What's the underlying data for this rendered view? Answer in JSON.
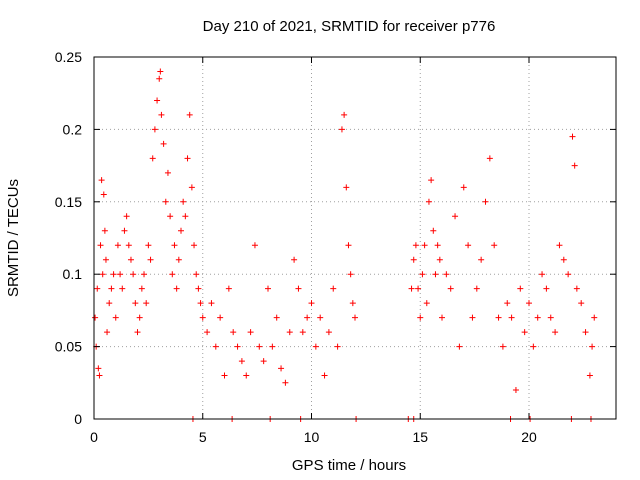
{
  "chart_data": {
    "type": "scatter",
    "title": "Day 210 of 2021, SRMTID for receiver p776",
    "xlabel": "GPS time / hours",
    "ylabel": "SRMTID / TECUs",
    "xlim": [
      0,
      24
    ],
    "ylim": [
      0,
      0.25
    ],
    "xticks": [
      0,
      5,
      10,
      15,
      20
    ],
    "xtick_labels": [
      "0",
      "5",
      "10",
      "15",
      "20"
    ],
    "yticks": [
      0,
      0.05,
      0.1,
      0.15,
      0.2,
      0.25
    ],
    "ytick_labels": [
      "0",
      "0.05",
      "0.1",
      "0.15",
      "0.2",
      "0.25"
    ],
    "grid": true,
    "series": [
      {
        "name": "SRMTID",
        "color": "#ff0000",
        "marker": "plus",
        "points": [
          [
            0.05,
            0.07
          ],
          [
            0.1,
            0.05
          ],
          [
            0.15,
            0.09
          ],
          [
            0.2,
            0.035
          ],
          [
            0.25,
            0.03
          ],
          [
            0.3,
            0.12
          ],
          [
            0.35,
            0.165
          ],
          [
            0.4,
            0.1
          ],
          [
            0.45,
            0.155
          ],
          [
            0.5,
            0.13
          ],
          [
            0.55,
            0.11
          ],
          [
            0.6,
            0.06
          ],
          [
            0.7,
            0.08
          ],
          [
            0.8,
            0.09
          ],
          [
            0.9,
            0.1
          ],
          [
            1.0,
            0.07
          ],
          [
            1.1,
            0.12
          ],
          [
            1.2,
            0.1
          ],
          [
            1.3,
            0.09
          ],
          [
            1.4,
            0.13
          ],
          [
            1.5,
            0.14
          ],
          [
            1.6,
            0.12
          ],
          [
            1.7,
            0.11
          ],
          [
            1.8,
            0.1
          ],
          [
            1.9,
            0.08
          ],
          [
            2.0,
            0.06
          ],
          [
            2.1,
            0.07
          ],
          [
            2.2,
            0.09
          ],
          [
            2.3,
            0.1
          ],
          [
            2.4,
            0.08
          ],
          [
            2.5,
            0.12
          ],
          [
            2.6,
            0.11
          ],
          [
            2.7,
            0.18
          ],
          [
            2.8,
            0.2
          ],
          [
            2.9,
            0.22
          ],
          [
            3.0,
            0.235
          ],
          [
            3.05,
            0.24
          ],
          [
            3.1,
            0.21
          ],
          [
            3.2,
            0.19
          ],
          [
            3.3,
            0.15
          ],
          [
            3.4,
            0.17
          ],
          [
            3.5,
            0.14
          ],
          [
            3.6,
            0.1
          ],
          [
            3.7,
            0.12
          ],
          [
            3.8,
            0.09
          ],
          [
            3.9,
            0.11
          ],
          [
            4.0,
            0.13
          ],
          [
            4.1,
            0.15
          ],
          [
            4.2,
            0.14
          ],
          [
            4.3,
            0.18
          ],
          [
            4.4,
            0.21
          ],
          [
            4.5,
            0.16
          ],
          [
            4.6,
            0.12
          ],
          [
            4.7,
            0.1
          ],
          [
            4.8,
            0.09
          ],
          [
            4.9,
            0.08
          ],
          [
            5.0,
            0.07
          ],
          [
            5.2,
            0.06
          ],
          [
            5.4,
            0.08
          ],
          [
            5.6,
            0.05
          ],
          [
            5.8,
            0.07
          ],
          [
            6.0,
            0.03
          ],
          [
            6.2,
            0.09
          ],
          [
            6.4,
            0.06
          ],
          [
            6.6,
            0.05
          ],
          [
            6.8,
            0.04
          ],
          [
            7.0,
            0.03
          ],
          [
            7.2,
            0.06
          ],
          [
            7.4,
            0.12
          ],
          [
            7.6,
            0.05
          ],
          [
            7.8,
            0.04
          ],
          [
            8.0,
            0.09
          ],
          [
            8.2,
            0.05
          ],
          [
            8.4,
            0.07
          ],
          [
            8.6,
            0.035
          ],
          [
            8.8,
            0.025
          ],
          [
            9.0,
            0.06
          ],
          [
            9.2,
            0.11
          ],
          [
            9.4,
            0.09
          ],
          [
            9.6,
            0.06
          ],
          [
            9.8,
            0.07
          ],
          [
            10.0,
            0.08
          ],
          [
            10.2,
            0.05
          ],
          [
            10.4,
            0.07
          ],
          [
            10.6,
            0.03
          ],
          [
            10.8,
            0.06
          ],
          [
            11.0,
            0.09
          ],
          [
            11.2,
            0.05
          ],
          [
            11.4,
            0.2
          ],
          [
            11.5,
            0.21
          ],
          [
            11.6,
            0.16
          ],
          [
            11.7,
            0.12
          ],
          [
            11.8,
            0.1
          ],
          [
            11.9,
            0.08
          ],
          [
            12.0,
            0.07
          ],
          [
            14.6,
            0.09
          ],
          [
            14.7,
            0.11
          ],
          [
            14.8,
            0.12
          ],
          [
            14.9,
            0.09
          ],
          [
            15.0,
            0.07
          ],
          [
            15.1,
            0.1
          ],
          [
            15.2,
            0.12
          ],
          [
            15.3,
            0.08
          ],
          [
            15.4,
            0.15
          ],
          [
            15.5,
            0.165
          ],
          [
            15.6,
            0.13
          ],
          [
            15.7,
            0.1
          ],
          [
            15.8,
            0.12
          ],
          [
            15.9,
            0.11
          ],
          [
            16.0,
            0.07
          ],
          [
            16.2,
            0.1
          ],
          [
            16.4,
            0.09
          ],
          [
            16.6,
            0.14
          ],
          [
            16.8,
            0.05
          ],
          [
            17.0,
            0.16
          ],
          [
            17.2,
            0.12
          ],
          [
            17.4,
            0.07
          ],
          [
            17.6,
            0.09
          ],
          [
            17.8,
            0.11
          ],
          [
            18.0,
            0.15
          ],
          [
            18.2,
            0.18
          ],
          [
            18.4,
            0.12
          ],
          [
            18.6,
            0.07
          ],
          [
            18.8,
            0.05
          ],
          [
            19.0,
            0.08
          ],
          [
            19.2,
            0.07
          ],
          [
            19.4,
            0.02
          ],
          [
            19.6,
            0.09
          ],
          [
            19.8,
            0.06
          ],
          [
            20.0,
            0.08
          ],
          [
            20.2,
            0.05
          ],
          [
            20.4,
            0.07
          ],
          [
            20.6,
            0.1
          ],
          [
            20.8,
            0.09
          ],
          [
            21.0,
            0.07
          ],
          [
            21.2,
            0.06
          ],
          [
            21.4,
            0.12
          ],
          [
            21.6,
            0.11
          ],
          [
            21.8,
            0.1
          ],
          [
            22.0,
            0.195
          ],
          [
            22.1,
            0.175
          ],
          [
            22.2,
            0.09
          ],
          [
            22.4,
            0.08
          ],
          [
            22.6,
            0.06
          ],
          [
            22.8,
            0.03
          ],
          [
            22.9,
            0.05
          ],
          [
            23.0,
            0.07
          ]
        ],
        "zero_points": [
          4.55,
          6.35,
          8.1,
          9.5,
          12.05,
          14.45,
          14.7,
          19.15,
          20.05,
          21.95,
          22.85
        ]
      }
    ]
  }
}
